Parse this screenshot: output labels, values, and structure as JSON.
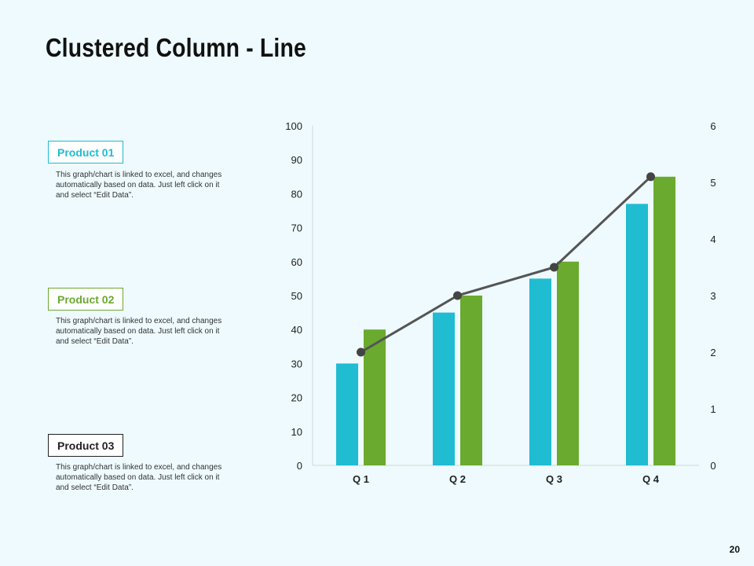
{
  "title": "Clustered Column - Line",
  "page_number": "20",
  "products": [
    {
      "label": "Product 01",
      "color": "#1fbcd2",
      "description": "This graph/chart is linked to excel, and changes automatically based on data. Just left click on it and select “Edit Data”."
    },
    {
      "label": "Product 02",
      "color": "#6aaa2e",
      "description": "This graph/chart is linked to excel, and changes automatically based on data. Just left click on it and select “Edit Data”."
    },
    {
      "label": "Product 03",
      "color": "#222222",
      "description": "This graph/chart is linked to excel, and changes automatically based on data. Just left click on it and select “Edit Data”."
    }
  ],
  "chart_data": {
    "type": "bar",
    "categories": [
      "Q 1",
      "Q 2",
      "Q 3",
      "Q 4"
    ],
    "series": [
      {
        "kind": "bar",
        "axis": "left",
        "color": "#1fbcd2",
        "values": [
          30,
          45,
          55,
          77
        ]
      },
      {
        "kind": "bar",
        "axis": "left",
        "color": "#6aaa2e",
        "values": [
          40,
          50,
          60,
          85
        ]
      },
      {
        "kind": "line",
        "axis": "right",
        "color": "#555555",
        "values": [
          2,
          3,
          3.5,
          5.1
        ]
      }
    ],
    "ylim": [
      0,
      100
    ],
    "yticks": [
      0,
      10,
      20,
      30,
      40,
      50,
      60,
      70,
      80,
      90,
      100
    ],
    "y2lim": [
      0,
      6
    ],
    "y2ticks": [
      0,
      1,
      2,
      3,
      4,
      5,
      6
    ],
    "grid": false,
    "legend": "none"
  }
}
